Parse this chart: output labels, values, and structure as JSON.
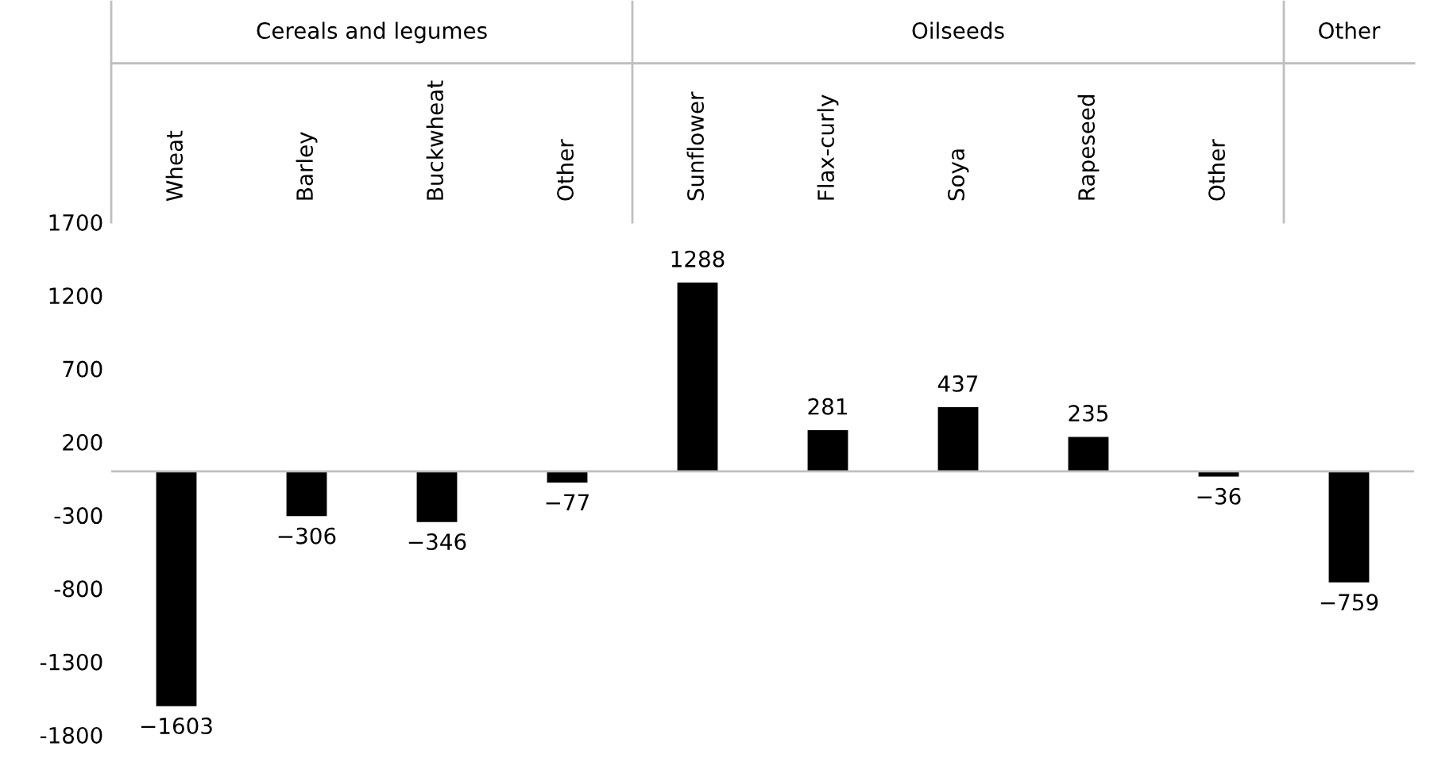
{
  "chart_data": {
    "type": "bar",
    "categories": [
      "Wheat",
      "Barley",
      "Buckwheat",
      "Other",
      "Sunflower",
      "Flax-curly",
      "Soya",
      "Rapeseed",
      "Other",
      null
    ],
    "values": [
      -1603,
      -306,
      -346,
      -77,
      1288,
      281,
      437,
      235,
      -36,
      -759
    ],
    "value_labels": [
      "−1603",
      "−306",
      "−346",
      "−77",
      "1288",
      "281",
      "437",
      "235",
      "−36",
      "−759"
    ],
    "color": "#000000",
    "ylim": [
      -1800,
      1700
    ],
    "yticks": [
      -1800,
      -1300,
      -800,
      -300,
      200,
      700,
      1200,
      1700
    ],
    "grid": false,
    "annotations": [
      "Cereals and legumes",
      "Oilseeds",
      "Other"
    ]
  }
}
